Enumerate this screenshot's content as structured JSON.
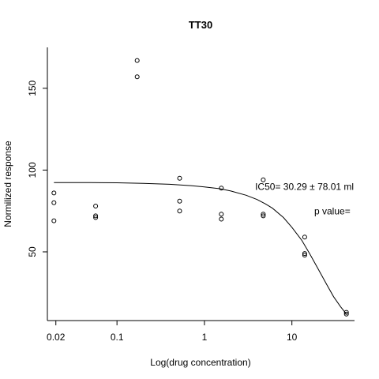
{
  "chart_data": {
    "type": "scatter",
    "title": "TT30",
    "xlabel": "Log(drug concentration)",
    "ylabel": "Normilized response",
    "x_scale": "log",
    "xlim": [
      0.016,
      52
    ],
    "ylim": [
      8,
      175
    ],
    "x_ticks": [
      {
        "value": 0.02,
        "label": "0.02"
      },
      {
        "value": 0.1,
        "label": "0.1"
      },
      {
        "value": 1,
        "label": "1"
      },
      {
        "value": 10,
        "label": "10"
      }
    ],
    "y_ticks": [
      {
        "value": 50,
        "label": "50"
      },
      {
        "value": 100,
        "label": "100"
      },
      {
        "value": 150,
        "label": "150"
      }
    ],
    "points": [
      {
        "x": 0.019,
        "y": 86
      },
      {
        "x": 0.019,
        "y": 80
      },
      {
        "x": 0.019,
        "y": 69
      },
      {
        "x": 0.057,
        "y": 78
      },
      {
        "x": 0.057,
        "y": 72
      },
      {
        "x": 0.057,
        "y": 71
      },
      {
        "x": 0.17,
        "y": 167
      },
      {
        "x": 0.17,
        "y": 157
      },
      {
        "x": 0.52,
        "y": 95
      },
      {
        "x": 0.52,
        "y": 81
      },
      {
        "x": 0.52,
        "y": 75
      },
      {
        "x": 1.56,
        "y": 89
      },
      {
        "x": 1.56,
        "y": 73
      },
      {
        "x": 1.56,
        "y": 70
      },
      {
        "x": 4.7,
        "y": 94
      },
      {
        "x": 4.7,
        "y": 73
      },
      {
        "x": 4.7,
        "y": 72
      },
      {
        "x": 14,
        "y": 59
      },
      {
        "x": 14,
        "y": 49
      },
      {
        "x": 14,
        "y": 48
      },
      {
        "x": 42,
        "y": 13
      },
      {
        "x": 42,
        "y": 12
      }
    ],
    "fit_curve": [
      {
        "x": 0.019,
        "y": 92.3
      },
      {
        "x": 0.05,
        "y": 92.3
      },
      {
        "x": 0.1,
        "y": 92.2
      },
      {
        "x": 0.2,
        "y": 91.9
      },
      {
        "x": 0.4,
        "y": 91.3
      },
      {
        "x": 0.7,
        "y": 90.5
      },
      {
        "x": 1.0,
        "y": 89.7
      },
      {
        "x": 1.5,
        "y": 88.6
      },
      {
        "x": 2.0,
        "y": 87.2
      },
      {
        "x": 3.0,
        "y": 84.6
      },
      {
        "x": 4.0,
        "y": 82.0
      },
      {
        "x": 5.0,
        "y": 79.3
      },
      {
        "x": 6.0,
        "y": 76.7
      },
      {
        "x": 8.0,
        "y": 71.0
      },
      {
        "x": 10.0,
        "y": 65.0
      },
      {
        "x": 13.0,
        "y": 57.0
      },
      {
        "x": 16.0,
        "y": 48.8
      },
      {
        "x": 20.0,
        "y": 39.5
      },
      {
        "x": 25.0,
        "y": 30.0
      },
      {
        "x": 30.0,
        "y": 22.6
      },
      {
        "x": 36.0,
        "y": 16.5
      },
      {
        "x": 42.0,
        "y": 12.0
      }
    ],
    "annotations": [
      {
        "id": "ic50",
        "text": "IC50= 30.29 ± 78.01 ml",
        "x": 3.8,
        "y": 88
      },
      {
        "id": "pvalue",
        "text": "p value=",
        "x": 18,
        "y": 73
      }
    ]
  }
}
